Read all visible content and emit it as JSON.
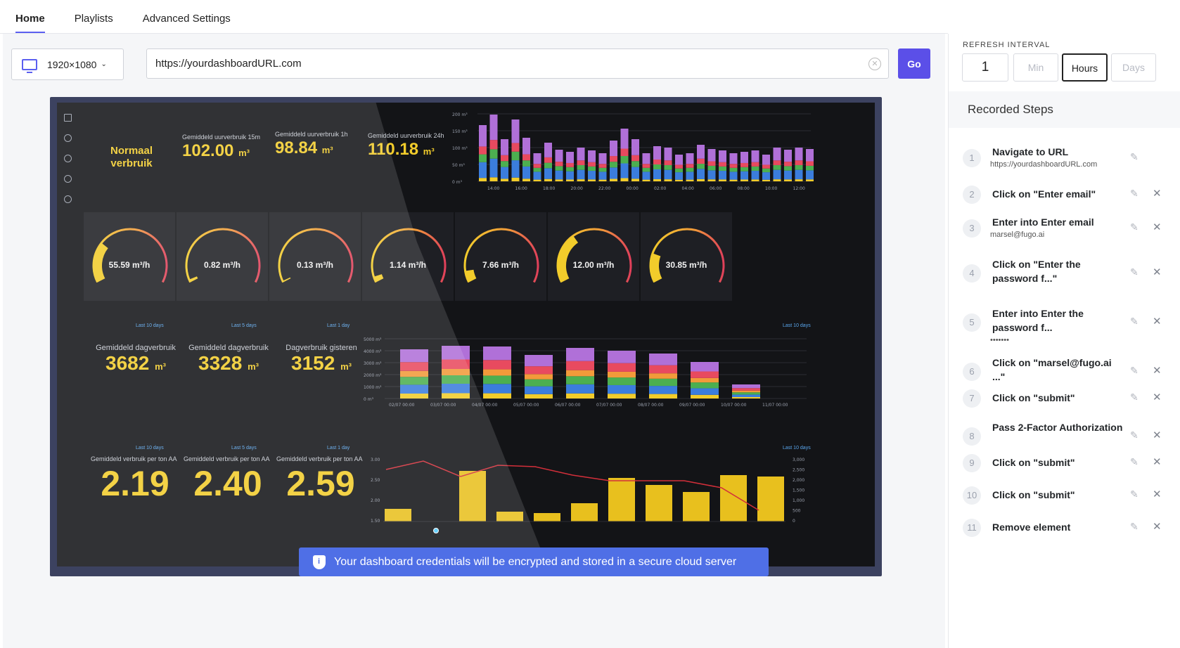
{
  "tabs": [
    {
      "label": "Home",
      "active": true
    },
    {
      "label": "Playlists",
      "active": false
    },
    {
      "label": "Advanced Settings",
      "active": false
    }
  ],
  "toolbar": {
    "resolution": "1920×1080",
    "url_value": "https://yourdashboardURL.com",
    "go_label": "Go"
  },
  "refresh": {
    "label": "REFRESH INTERVAL",
    "value": "1",
    "units": [
      "Min",
      "Hours",
      "Days"
    ],
    "selected_unit": "Hours"
  },
  "recorded_steps": {
    "title": "Recorded Steps",
    "steps": [
      {
        "n": "1",
        "title": "Navigate to URL",
        "sub": "https://yourdashboardURL.com"
      },
      {
        "n": "2",
        "title": "Click on \"Enter email\"",
        "sub": ""
      },
      {
        "n": "3",
        "title": "Enter into Enter email",
        "sub": "marsel@fugo.ai"
      },
      {
        "n": "4",
        "title": "Click on \"Enter the password f...\"",
        "sub": ""
      },
      {
        "n": "5",
        "title": "Enter into Enter the password f...",
        "sub": "•••••••"
      },
      {
        "n": "6",
        "title": "Click on \"marsel@fugo.ai ...\"",
        "sub": ""
      },
      {
        "n": "7",
        "title": "Click on \"submit\"",
        "sub": ""
      },
      {
        "n": "8",
        "title": "Pass 2-Factor Authorization",
        "sub": ""
      },
      {
        "n": "9",
        "title": "Click on \"submit\"",
        "sub": ""
      },
      {
        "n": "10",
        "title": "Click on \"submit\"",
        "sub": ""
      },
      {
        "n": "11",
        "title": "Remove element",
        "sub": ""
      }
    ]
  },
  "banner": {
    "text": "Your dashboard credentials will be encrypted and stored in a secure cloud server"
  },
  "dashboard": {
    "normaal": "Normaal verbruik",
    "kpi_top": [
      {
        "label": "Gemiddeld uurverbruik 15m",
        "value": "102.00",
        "unit": "m³"
      },
      {
        "label": "Gemiddeld uurverbruik 1h",
        "value": "98.84",
        "unit": "m³"
      },
      {
        "label": "Gemiddeld uurverbruik 24h",
        "value": "110.18",
        "unit": "m³"
      }
    ],
    "gauges": [
      {
        "value": "55.59 m³/h",
        "fill": 0.28
      },
      {
        "value": "0.82 m³/h",
        "fill": 0.02
      },
      {
        "value": "0.13 m³/h",
        "fill": 0.01
      },
      {
        "value": "1.14 m³/h",
        "fill": 0.04
      },
      {
        "value": "7.66 m³/h",
        "fill": 0.08
      },
      {
        "value": "12.00 m³/h",
        "fill": 0.35
      },
      {
        "value": "30.85 m³/h",
        "fill": 0.2
      }
    ],
    "kpi_mid": [
      {
        "label": "Gemiddeld dagverbruik",
        "value": "3682",
        "unit": "m³",
        "tag": "Last 10 days"
      },
      {
        "label": "Gemiddeld dagverbruik",
        "value": "3328",
        "unit": "m³",
        "tag": "Last 5 days"
      },
      {
        "label": "Dagverbruik gisteren",
        "value": "3152",
        "unit": "m³",
        "tag": "Last 1 day"
      }
    ],
    "kpi_bot": [
      {
        "label": "Gemiddeld verbruik per ton AA",
        "value": "2.19",
        "tag": "Last 10 days"
      },
      {
        "label": "Gemiddeld verbruik per ton AA",
        "value": "2.40",
        "tag": "Last 5 days"
      },
      {
        "label": "Gemiddeld verbruik per ton AA",
        "value": "2.59",
        "tag": "Last 1 day"
      }
    ],
    "chart_tag": "Last 10 days",
    "top_chart_x": [
      "14:00",
      "16:00",
      "18:00",
      "20:00",
      "22:00",
      "00:00",
      "02:00",
      "04:00",
      "06:00",
      "08:00",
      "10:00",
      "12:00"
    ],
    "top_chart_y": [
      "200 m³",
      "150 m³",
      "100 m³",
      "50 m³",
      "0 m³"
    ],
    "mid_chart_x": [
      "02/07 00:00",
      "03/07 00:00",
      "04/07 00:00",
      "05/07 00:00",
      "06/07 00:00",
      "07/07 00:00",
      "08/07 00:00",
      "09/07 00:00",
      "10/07 00:00",
      "11/07 00:00"
    ],
    "mid_chart_y": [
      "5000 m³",
      "4000 m³",
      "3000 m³",
      "2000 m³",
      "1000 m³",
      "0 m³"
    ],
    "bot_chart_y_left": [
      "3.00",
      "2.50",
      "2.00",
      "1.50"
    ],
    "bot_chart_y_right": [
      "3,000",
      "2,500",
      "2,000",
      "1,500",
      "1,000",
      "500",
      "0"
    ]
  }
}
